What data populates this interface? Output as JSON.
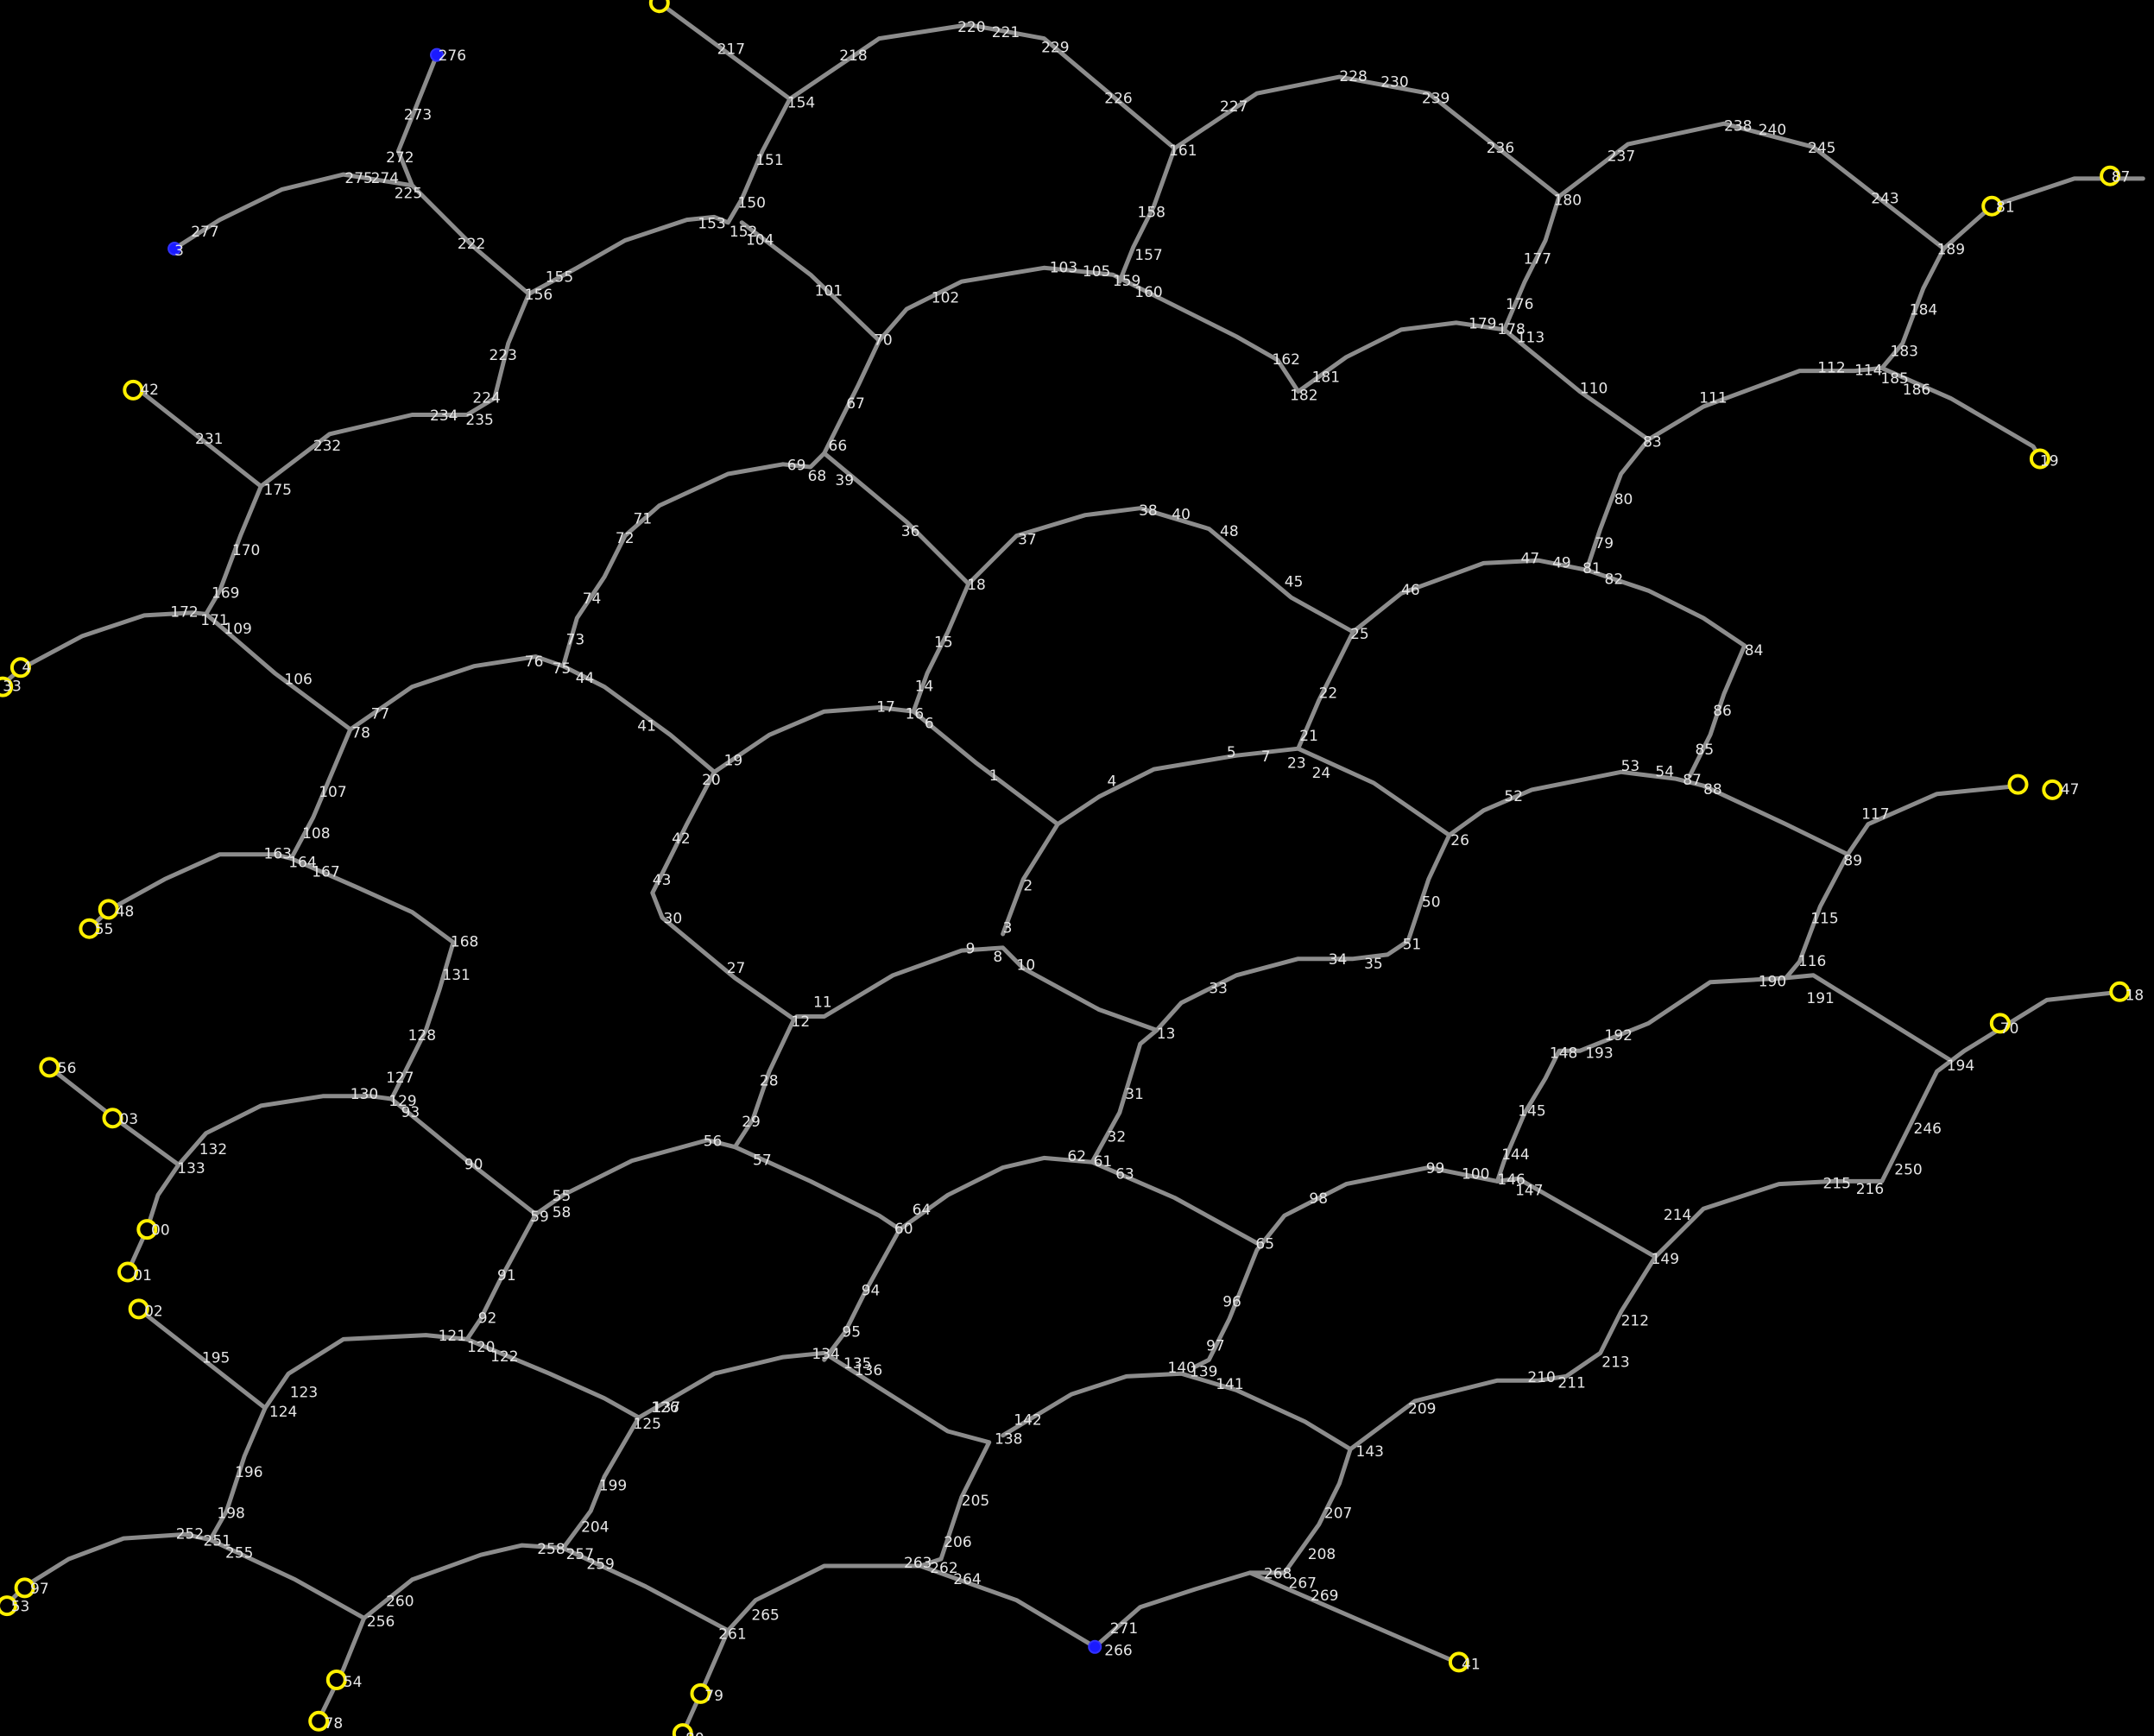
{
  "colors": {
    "background": "#000000",
    "edge": "#8c8c8c",
    "label": "#e6e6e6",
    "yellow_marker": "#fff000",
    "blue_marker": "#1a1aff"
  },
  "labels": [
    "1",
    "2",
    "3",
    "4",
    "5",
    "6",
    "7",
    "8",
    "9",
    "10",
    "11",
    "12",
    "13",
    "14",
    "15",
    "16",
    "17",
    "18",
    "19",
    "20",
    "21",
    "22",
    "23",
    "24",
    "25",
    "26",
    "27",
    "28",
    "29",
    "30",
    "31",
    "32",
    "33",
    "34",
    "35",
    "36",
    "37",
    "38",
    "39",
    "40",
    "41",
    "42",
    "43",
    "44",
    "45",
    "46",
    "47",
    "48",
    "49",
    "50",
    "51",
    "52",
    "53",
    "54",
    "55",
    "56",
    "57",
    "58",
    "59",
    "60",
    "61",
    "62",
    "63",
    "64",
    "65",
    "66",
    "67",
    "68",
    "69",
    "70",
    "71",
    "72",
    "73",
    "74",
    "75",
    "76",
    "77",
    "78",
    "79",
    "80",
    "81",
    "82",
    "83",
    "84",
    "85",
    "86",
    "87",
    "88",
    "89",
    "90",
    "91",
    "92",
    "93",
    "94",
    "95",
    "96",
    "97",
    "98",
    "99",
    "100",
    "101",
    "102",
    "103",
    "104",
    "105",
    "106",
    "107",
    "108",
    "109",
    "110",
    "111",
    "112",
    "113",
    "114",
    "115",
    "116",
    "117",
    "120",
    "121",
    "122",
    "123",
    "124",
    "125",
    "126",
    "127",
    "128",
    "129",
    "130",
    "131",
    "132",
    "133",
    "134",
    "135",
    "136",
    "137",
    "138",
    "139",
    "140",
    "141",
    "142",
    "143",
    "144",
    "145",
    "146",
    "147",
    "148",
    "149",
    "150",
    "151",
    "152",
    "153",
    "154",
    "155",
    "156",
    "157",
    "158",
    "159",
    "160",
    "161",
    "162",
    "163",
    "164",
    "167",
    "168",
    "169",
    "170",
    "171",
    "172",
    "175",
    "176",
    "177",
    "178",
    "179",
    "180",
    "181",
    "182",
    "183",
    "184",
    "185",
    "186",
    "189",
    "190",
    "191",
    "192",
    "193",
    "194",
    "195",
    "196",
    "198",
    "199",
    "204",
    "205",
    "206",
    "207",
    "208",
    "209",
    "210",
    "211",
    "212",
    "213",
    "214",
    "215",
    "216",
    "217",
    "218",
    "220",
    "221",
    "222",
    "223",
    "224",
    "225",
    "226",
    "227",
    "228",
    "229",
    "230",
    "231",
    "232",
    "234",
    "235",
    "236",
    "237",
    "238",
    "239",
    "240",
    "243",
    "245",
    "246",
    "250",
    "251",
    "252",
    "255",
    "256",
    "257",
    "258",
    "259",
    "260",
    "261",
    "262",
    "263",
    "264",
    "265",
    "266",
    "267",
    "268",
    "269",
    "271",
    "272",
    "273",
    "274",
    "275",
    "276",
    "277",
    "3",
    "4",
    "33",
    "42",
    "87",
    "19",
    "47",
    "18",
    "48",
    "55",
    "56",
    "03",
    "00",
    "01",
    "02",
    "97",
    "53",
    "54",
    "78",
    "79",
    "80",
    "81",
    "41",
    "70",
    "65"
  ],
  "yellow_markers": [
    "0",
    "33",
    "41",
    "42",
    "87",
    "18",
    "19",
    "47",
    "48",
    "73",
    "74",
    "55",
    "56",
    "03",
    "00",
    "01",
    "02",
    "97",
    "53",
    "54",
    "78",
    "79",
    "80",
    "81",
    "70"
  ],
  "blue_markers": [
    "275",
    "277",
    "265"
  ]
}
